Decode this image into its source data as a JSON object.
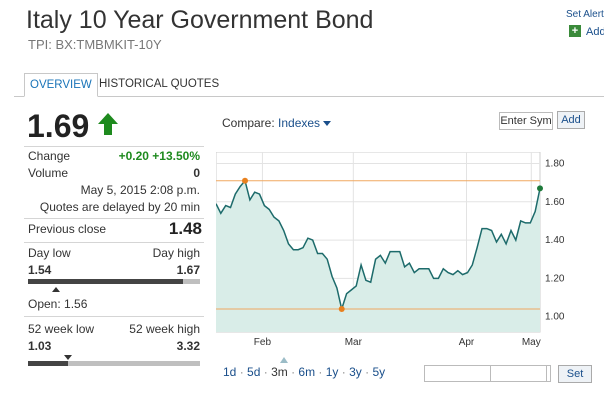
{
  "header": {
    "title": "Italy 10 Year Government Bond",
    "subtitle": "TPI: BX:TMBMKIT-10Y",
    "set_alerts": "Set Alerts",
    "add": "Add"
  },
  "tabs": [
    {
      "label": "OVERVIEW",
      "active": true
    },
    {
      "label": "HISTORICAL QUOTES",
      "active": false
    }
  ],
  "quote": {
    "price": "1.69",
    "direction": "up",
    "change_label": "Change",
    "change_value": "+0.20 +13.50%",
    "volume_label": "Volume",
    "volume_value": "0",
    "timestamp": "May 5, 2015 2:08 p.m.",
    "delay_note": "Quotes are delayed by 20 min",
    "previous_close_label": "Previous close",
    "previous_close_value": "1.48",
    "day_low_label": "Day low",
    "day_high_label": "Day high",
    "day_low_value": "1.54",
    "day_high_value": "1.67",
    "day_range_fill": 0.9,
    "open_label": "Open: 1.56",
    "wk52_low_label": "52 week low",
    "wk52_high_label": "52 week high",
    "wk52_low_value": "1.03",
    "wk52_high_value": "3.32",
    "wk52_range_fill": 0.23,
    "up_color": "#1e8a1e"
  },
  "chart_controls": {
    "compare_label": "Compare:",
    "compare_value": "Indexes",
    "enter_symbol": "Enter Sym",
    "add_button": "Add",
    "ranges": [
      "1d",
      "5d",
      "3m",
      "6m",
      "1y",
      "3y",
      "5y"
    ],
    "selected_range": "3m",
    "set_button": "Set"
  },
  "chart_data": {
    "type": "area",
    "ylim": [
      0.92,
      1.86
    ],
    "yticks": [
      "1.80",
      "1.60",
      "1.40",
      "1.20",
      "1.00"
    ],
    "ytick_values": [
      1.8,
      1.6,
      1.4,
      1.2,
      1.0
    ],
    "xticks": [
      "Feb",
      "Mar",
      "Apr",
      "May"
    ],
    "xtick_values": [
      9.6,
      28.4,
      51.8,
      65.2
    ],
    "xlim": [
      0,
      67
    ],
    "high_line": 1.71,
    "low_line": 1.04,
    "fill_color": "#d9ede8",
    "line_color": "#1d6b6b",
    "x": [
      0,
      1,
      2,
      3,
      4,
      5,
      6,
      7,
      8,
      9,
      10,
      11,
      12,
      13,
      14,
      15,
      16,
      17,
      18,
      19,
      20,
      21,
      22,
      23,
      24,
      25,
      26,
      27,
      28,
      29,
      30,
      31,
      32,
      33,
      34,
      35,
      36,
      37,
      38,
      39,
      40,
      41,
      42,
      43,
      44,
      45,
      46,
      47,
      48,
      49,
      50,
      51,
      52,
      53,
      54,
      55,
      56,
      57,
      58,
      59,
      60,
      61,
      62,
      63,
      64,
      65,
      66,
      67
    ],
    "values": [
      1.59,
      1.54,
      1.58,
      1.57,
      1.64,
      1.68,
      1.71,
      1.61,
      1.65,
      1.64,
      1.58,
      1.56,
      1.52,
      1.5,
      1.45,
      1.38,
      1.35,
      1.35,
      1.36,
      1.41,
      1.4,
      1.33,
      1.33,
      1.3,
      1.21,
      1.15,
      1.04,
      1.12,
      1.14,
      1.16,
      1.27,
      1.19,
      1.18,
      1.3,
      1.32,
      1.28,
      1.34,
      1.34,
      1.34,
      1.26,
      1.28,
      1.23,
      1.25,
      1.25,
      1.25,
      1.2,
      1.2,
      1.25,
      1.23,
      1.22,
      1.24,
      1.22,
      1.23,
      1.27,
      1.36,
      1.46,
      1.46,
      1.45,
      1.39,
      1.43,
      1.38,
      1.45,
      1.4,
      1.5,
      1.49,
      1.49,
      1.55,
      1.67
    ]
  }
}
